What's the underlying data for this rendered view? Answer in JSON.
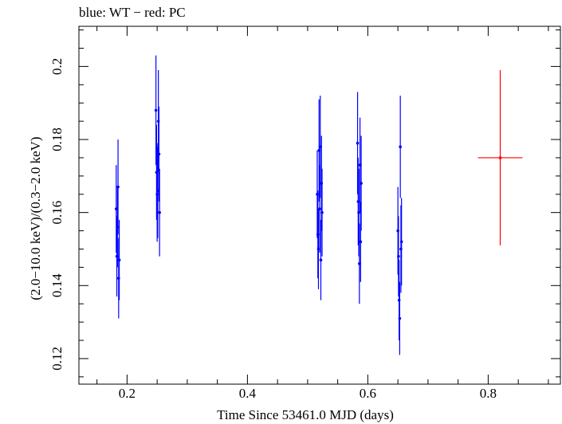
{
  "chart_data": {
    "type": "scatter",
    "title": "blue: WT − red: PC",
    "xlabel": "Time Since 53461.0 MJD (days)",
    "ylabel": "(2.0−10.0 keV)/(0.3−2.0 keV)",
    "xlim": [
      0.12,
      0.92
    ],
    "ylim": [
      0.113,
      0.211
    ],
    "xticks": [
      0.2,
      0.4,
      0.6,
      0.8
    ],
    "xtick_labels": [
      "0.2",
      "0.4",
      "0.6",
      "0.8"
    ],
    "yticks": [
      0.12,
      0.14,
      0.16,
      0.18,
      0.2
    ],
    "ytick_labels": [
      "0.12",
      "0.14",
      "0.16",
      "0.18",
      "0.2"
    ],
    "grid": false,
    "series": [
      {
        "color": "#0000ff",
        "points": [
          {
            "x": 0.182,
            "y": 0.161,
            "err": 0.012
          },
          {
            "x": 0.183,
            "y": 0.148,
            "err": 0.011
          },
          {
            "x": 0.184,
            "y": 0.156,
            "err": 0.011
          },
          {
            "x": 0.185,
            "y": 0.167,
            "err": 0.013
          },
          {
            "x": 0.186,
            "y": 0.142,
            "err": 0.011
          },
          {
            "x": 0.187,
            "y": 0.147,
            "err": 0.011
          },
          {
            "x": 0.248,
            "y": 0.188,
            "err": 0.015
          },
          {
            "x": 0.249,
            "y": 0.171,
            "err": 0.013
          },
          {
            "x": 0.25,
            "y": 0.165,
            "err": 0.013
          },
          {
            "x": 0.251,
            "y": 0.166,
            "err": 0.013
          },
          {
            "x": 0.252,
            "y": 0.185,
            "err": 0.014
          },
          {
            "x": 0.253,
            "y": 0.176,
            "err": 0.013
          },
          {
            "x": 0.254,
            "y": 0.16,
            "err": 0.012
          },
          {
            "x": 0.516,
            "y": 0.165,
            "err": 0.012
          },
          {
            "x": 0.517,
            "y": 0.154,
            "err": 0.012
          },
          {
            "x": 0.518,
            "y": 0.15,
            "err": 0.011
          },
          {
            "x": 0.519,
            "y": 0.177,
            "err": 0.014
          },
          {
            "x": 0.52,
            "y": 0.161,
            "err": 0.012
          },
          {
            "x": 0.521,
            "y": 0.178,
            "err": 0.014
          },
          {
            "x": 0.522,
            "y": 0.147,
            "err": 0.011
          },
          {
            "x": 0.523,
            "y": 0.168,
            "err": 0.013
          },
          {
            "x": 0.524,
            "y": 0.16,
            "err": 0.012
          },
          {
            "x": 0.583,
            "y": 0.179,
            "err": 0.014
          },
          {
            "x": 0.584,
            "y": 0.163,
            "err": 0.012
          },
          {
            "x": 0.585,
            "y": 0.16,
            "err": 0.012
          },
          {
            "x": 0.586,
            "y": 0.146,
            "err": 0.011
          },
          {
            "x": 0.587,
            "y": 0.173,
            "err": 0.013
          },
          {
            "x": 0.588,
            "y": 0.152,
            "err": 0.011
          },
          {
            "x": 0.589,
            "y": 0.168,
            "err": 0.013
          },
          {
            "x": 0.65,
            "y": 0.155,
            "err": 0.012
          },
          {
            "x": 0.651,
            "y": 0.148,
            "err": 0.011
          },
          {
            "x": 0.652,
            "y": 0.136,
            "err": 0.011
          },
          {
            "x": 0.653,
            "y": 0.131,
            "err": 0.01
          },
          {
            "x": 0.654,
            "y": 0.178,
            "err": 0.014
          },
          {
            "x": 0.655,
            "y": 0.15,
            "err": 0.012
          },
          {
            "x": 0.656,
            "y": 0.152,
            "err": 0.012
          }
        ]
      },
      {
        "color": "#ff0000",
        "points": [
          {
            "x": 0.82,
            "y": 0.175,
            "err": 0.024,
            "xerr": 0.037
          }
        ]
      }
    ]
  }
}
